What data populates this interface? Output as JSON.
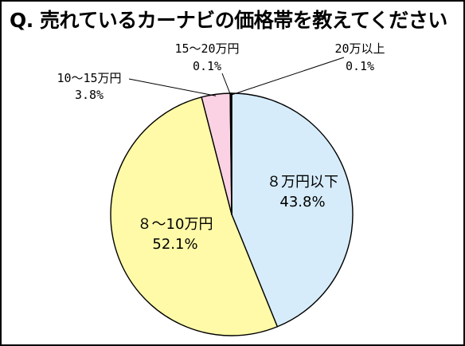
{
  "title": "Q. 売れているカーナビの価格帯を教えてください",
  "chart_data": {
    "type": "pie",
    "title": "Q. 売れているカーナビの価格帯を教えてください",
    "slices": [
      {
        "label": "８万円以下",
        "value": 43.8,
        "display": "43.8%",
        "color": "#d6ecfa"
      },
      {
        "label": "８〜10万円",
        "value": 52.1,
        "display": "52.1%",
        "color": "#fffaa8"
      },
      {
        "label": "10〜15万円",
        "value": 3.8,
        "display": "3.8%",
        "color": "#fbd2e4"
      },
      {
        "label": "15〜20万円",
        "value": 0.1,
        "display": "0.1%",
        "color": "#c8c8c8"
      },
      {
        "label": "20万以上",
        "value": 0.1,
        "display": "0.1%",
        "color": "#505050"
      }
    ],
    "start": "12 o'clock",
    "direction": "clockwise",
    "legend": "none"
  }
}
